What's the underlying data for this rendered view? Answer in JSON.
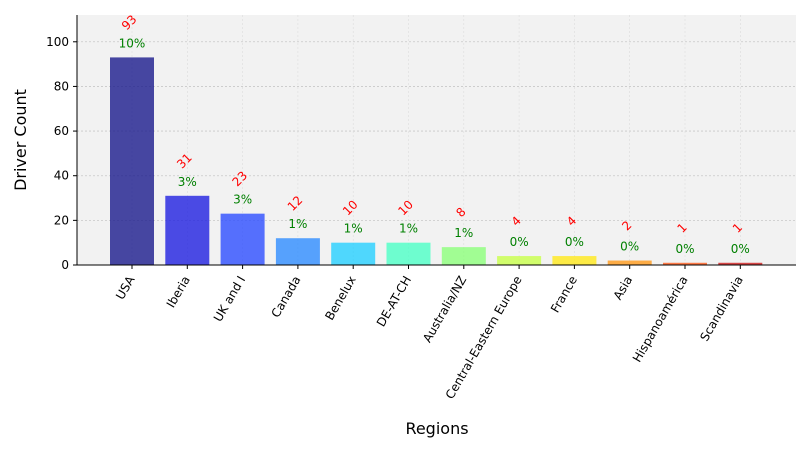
{
  "chart_data": {
    "type": "bar",
    "title": "",
    "xlabel": "Regions",
    "ylabel": "Driver Count",
    "categories": [
      "USA",
      "Iberia",
      "UK and I",
      "Canada",
      "Benelux",
      "DE-AT-CH",
      "Australia/NZ",
      "Central-Eastern Europe",
      "France",
      "Asia",
      "Hispanoamérica",
      "Scandinavia"
    ],
    "values": [
      93,
      31,
      23,
      12,
      10,
      10,
      8,
      4,
      4,
      2,
      1,
      1
    ],
    "count_labels": [
      "93",
      "31",
      "23",
      "12",
      "10",
      "10",
      "8",
      "4",
      "4",
      "2",
      "1",
      "1"
    ],
    "percent_labels": [
      "10%",
      "3%",
      "3%",
      "1%",
      "1%",
      "1%",
      "1%",
      "0%",
      "0%",
      "0%",
      "0%",
      "0%"
    ],
    "bar_colors": [
      "#1a1a8c",
      "#1f1fe0",
      "#2d4dff",
      "#2e8cff",
      "#26d0ff",
      "#4cffc6",
      "#8cff7a",
      "#c8ff4a",
      "#ffe81a",
      "#ff9a1a",
      "#ff5a1a",
      "#d01a1a"
    ],
    "count_label_color": "#ff0000",
    "percent_label_color": "#008000",
    "plot_background": "#f2f2f2",
    "ylim": [
      0,
      112
    ],
    "yticks": [
      0,
      20,
      40,
      60,
      80,
      100
    ],
    "grid": true
  }
}
